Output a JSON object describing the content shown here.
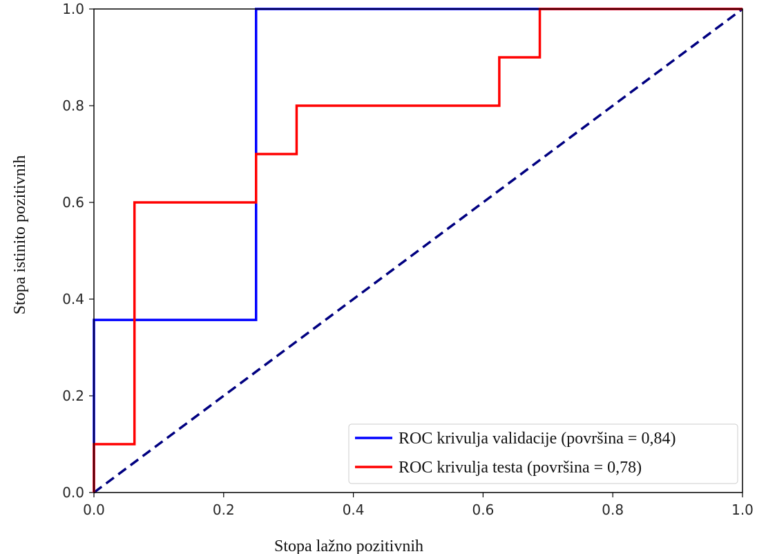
{
  "chart_data": {
    "type": "line",
    "xlabel": "Stopa lažno pozitivnih",
    "ylabel": "Stopa istinito  pozitivnih",
    "xlim": [
      0.0,
      1.0
    ],
    "ylim": [
      0.0,
      1.0
    ],
    "x_ticks": [
      "0.0",
      "0.2",
      "0.4",
      "0.6",
      "0.8",
      "1.0"
    ],
    "y_ticks": [
      "0.0",
      "0.2",
      "0.4",
      "0.6",
      "0.8",
      "1.0"
    ],
    "grid": false,
    "legend_position": "bottom-right",
    "series": [
      {
        "name": "ROC krivulja validacije (površina = 0,84)",
        "color": "#0000ff",
        "style": "solid",
        "points": [
          [
            0.0,
            0.0
          ],
          [
            0.0,
            0.357
          ],
          [
            0.25,
            0.357
          ],
          [
            0.25,
            1.0
          ],
          [
            1.0,
            1.0
          ]
        ]
      },
      {
        "name": "ROC krivulja testa (površina = 0,78)",
        "color": "#ff0000",
        "style": "solid",
        "points": [
          [
            0.0,
            0.0
          ],
          [
            0.0,
            0.1
          ],
          [
            0.0625,
            0.1
          ],
          [
            0.0625,
            0.6
          ],
          [
            0.25,
            0.6
          ],
          [
            0.25,
            0.7
          ],
          [
            0.3125,
            0.7
          ],
          [
            0.3125,
            0.8
          ],
          [
            0.625,
            0.8
          ],
          [
            0.625,
            0.9
          ],
          [
            0.6875,
            0.9
          ],
          [
            0.6875,
            1.0
          ],
          [
            1.0,
            1.0
          ]
        ]
      },
      {
        "name": "",
        "color": "#000080",
        "style": "dashed",
        "points": [
          [
            0.0,
            0.0
          ],
          [
            1.0,
            1.0
          ]
        ]
      }
    ]
  }
}
